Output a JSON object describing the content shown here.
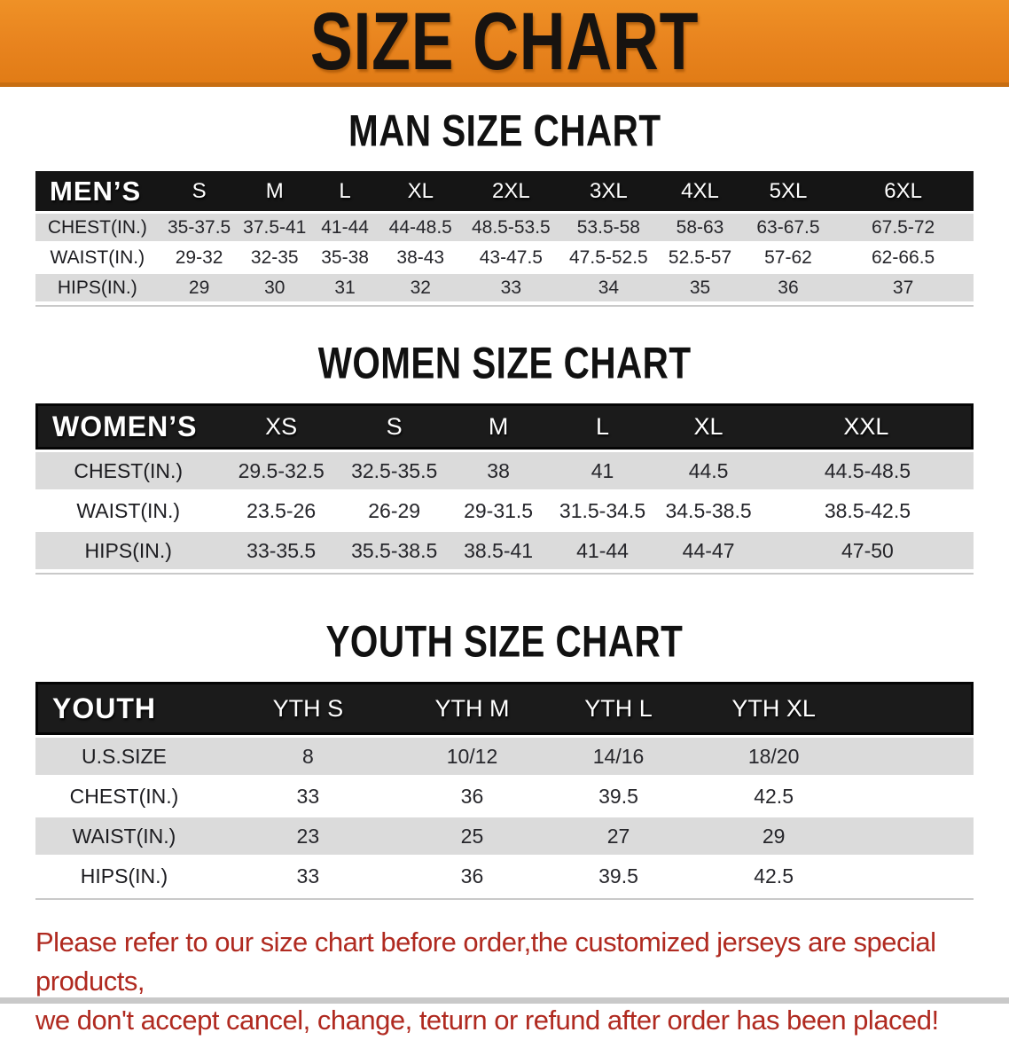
{
  "banner": {
    "title": "SIZE CHART"
  },
  "men_section": {
    "heading": "MAN SIZE CHART",
    "table": {
      "header_label": "MEN’S",
      "columns": [
        "S",
        "M",
        "L",
        "XL",
        "2XL",
        "3XL",
        "4XL",
        "5XL",
        "6XL"
      ],
      "rows": [
        {
          "label": "CHEST(IN.)",
          "values": [
            "35-37.5",
            "37.5-41",
            "41-44",
            "44-48.5",
            "48.5-53.5",
            "53.5-58",
            "58-63",
            "63-67.5",
            "67.5-72"
          ]
        },
        {
          "label": "WAIST(IN.)",
          "values": [
            "29-32",
            "32-35",
            "35-38",
            "38-43",
            "43-47.5",
            "47.5-52.5",
            "52.5-57",
            "57-62",
            "62-66.5"
          ]
        },
        {
          "label": "HIPS(IN.)",
          "values": [
            "29",
            "30",
            "31",
            "32",
            "33",
            "34",
            "35",
            "36",
            "37"
          ]
        }
      ]
    }
  },
  "women_section": {
    "heading": "WOMEN SIZE CHART",
    "table": {
      "header_label": "WOMEN’S",
      "columns": [
        "XS",
        "S",
        "M",
        "L",
        "XL",
        "XXL"
      ],
      "rows": [
        {
          "label": "CHEST(IN.)",
          "values": [
            "29.5-32.5",
            "32.5-35.5",
            "38",
            "41",
            "44.5",
            "44.5-48.5"
          ]
        },
        {
          "label": "WAIST(IN.)",
          "values": [
            "23.5-26",
            "26-29",
            "29-31.5",
            "31.5-34.5",
            "34.5-38.5",
            "38.5-42.5"
          ]
        },
        {
          "label": "HIPS(IN.)",
          "values": [
            "33-35.5",
            "35.5-38.5",
            "38.5-41",
            "41-44",
            "44-47",
            "47-50"
          ]
        }
      ]
    }
  },
  "youth_section": {
    "heading": "YOUTH SIZE CHART",
    "table": {
      "header_label": "YOUTH",
      "columns": [
        "YTH S",
        "YTH M",
        "YTH L",
        "YTH XL"
      ],
      "rows": [
        {
          "label": "U.S.SIZE",
          "values": [
            "8",
            "10/12",
            "14/16",
            "18/20"
          ]
        },
        {
          "label": "CHEST(IN.)",
          "values": [
            "33",
            "36",
            "39.5",
            "42.5"
          ]
        },
        {
          "label": "WAIST(IN.)",
          "values": [
            "23",
            "25",
            "27",
            "29"
          ]
        },
        {
          "label": "HIPS(IN.)",
          "values": [
            "33",
            "36",
            "39.5",
            "42.5"
          ]
        }
      ]
    }
  },
  "footer_note": {
    "line1": "Please refer to our size chart before order,the customized jerseys are special products,",
    "line2": "we don't accept cancel, change, teturn or refund after order has been placed!"
  },
  "colors": {
    "banner_orange": "#E8831E",
    "banner_border": "#C76E12",
    "header_black": "#151515",
    "stripe_gray": "#DBDBDB",
    "note_red": "#B02A20"
  }
}
